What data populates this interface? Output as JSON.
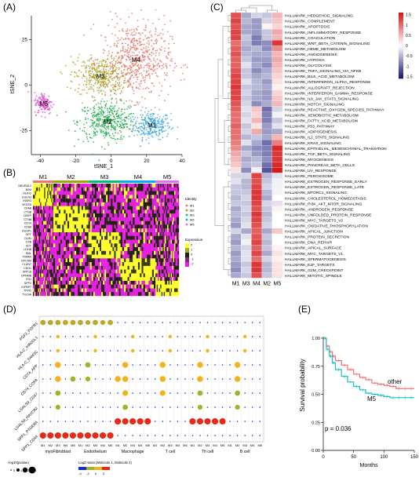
{
  "panels": {
    "a": {
      "label": "(A)",
      "xlabel": "tSNE_1",
      "ylabel": "tSNE_2",
      "xticks": [
        "-40",
        "-20",
        "0",
        "20",
        "40"
      ],
      "yticks": [
        "25",
        "0",
        "-25"
      ],
      "clusters": [
        {
          "name": "M1",
          "color": "#3fa9e0"
        },
        {
          "name": "M2",
          "color": "#1fae4b"
        },
        {
          "name": "M3",
          "color": "#a8a628"
        },
        {
          "name": "M4",
          "color": "#e7766a"
        },
        {
          "name": "M5",
          "color": "#e04fd6"
        }
      ]
    },
    "b": {
      "label": "(B)",
      "groups": [
        "M1",
        "M2",
        "M3",
        "M4",
        "M5"
      ],
      "group_colors": [
        "#f0766b",
        "#a3a500",
        "#00bf7d",
        "#00b0f6",
        "#e76bf3"
      ],
      "genes": [
        "NEURAL2",
        "B2M",
        "HLA-D",
        "EGLN3",
        "INSR3",
        "VEGFA",
        "CFAB",
        "CTSB",
        "CBGP",
        "CTNB",
        "CD14",
        "CD68",
        "DUSP1",
        "GPT",
        "DUKI",
        "CXB",
        "SCT",
        "LDHB",
        "SML",
        "TSPAN",
        "EPCAM",
        "CLDN7",
        "CDH1",
        "KRT18",
        "GPNMB",
        "FN1",
        "SPP1",
        "IGFBP7",
        "TFPI2",
        "TXLNA"
      ],
      "legend_identity_title": "Identity",
      "legend_identity_items": [
        "M1",
        "M2",
        "M3",
        "M4",
        "M5"
      ],
      "legend_expression_title": "Expression",
      "legend_expression_ticks": [
        "2",
        "1",
        "0",
        "-1",
        "-2"
      ]
    },
    "c": {
      "label": "(C)",
      "columns": [
        "M1",
        "M3",
        "M4",
        "M2",
        "M5"
      ],
      "colorbar_ticks": [
        "1.5",
        "1",
        "0.5",
        "0",
        "-0.5",
        "-1",
        "-1.5"
      ],
      "rows": [
        "HALLMARK_HEDGEHOG_SIGNALING",
        "HALLMARK_COMPLEMENT",
        "HALLMARK_APOPTOSIS",
        "HALLMARK_INFLAMMATORY_RESPONSE",
        "HALLMARK_COAGULATION",
        "HALLMARK_WNT_BETA_CATENIN_SIGNALING",
        "HALLMARK_HEME_METABOLISM",
        "HALLMARK_ANGIOGENESIS",
        "HALLMARK_HYPOXIA",
        "HALLMARK_GLYCOLYSIS",
        "HALLMARK_TNFA_SIGNALING_VIA_NFKB",
        "HALLMARK_BILE_ACID_METABOLISM",
        "HALLMARK_INTERFERON_ALPHA_RESPONSE",
        "HALLMARK_ALLOGRAFT_REJECTION",
        "HALLMARK_INTERFERON_GAMMA_RESPONSE",
        "HALLMARK_IL6_JAK_STAT3_SIGNALING",
        "HALLMARK_NOTCH_SIGNALING",
        "HALLMARK_REACTIVE_OXYGEN_SPECIES_PATHWAY",
        "HALLMARK_XENOBIOTIC_METABOLISM",
        "HALLMARK_FATTY_ACID_METABOLISM",
        "HALLMARK_P53_PATHWAY",
        "HALLMARK_ADIPOGENESIS",
        "HALLMARK_IL2_STAT5_SIGNALING",
        "HALLMARK_KRAS_SIGNALING",
        "HALLMARK_EPITHELIAL_MESENCHYMAL_TRANSITION",
        "HALLMARK_TGF_BETA_SIGNALING",
        "HALLMARK_MYOGENESIS",
        "HALLMARK_PANCREAS_BETA_CELLS",
        "HALLMARK_UV_RESPONSE",
        "HALLMARK_PEROXISOME",
        "HALLMARK_ESTROGEN_RESPONSE_EARLY",
        "HALLMARK_ESTROGEN_RESPONSE_LATE",
        "HALLMARK_MTORC1_SIGNALING",
        "HALLMARK_CHOLESTEROL_HOMEOSTASIS",
        "HALLMARK_PI3K_AKT_MTOR_SIGNALING",
        "HALLMARK_ANDROGEN_RESPONSE",
        "HALLMARK_UNFOLDED_PROTEIN_RESPONSE",
        "HALLMARK_MYC_TARGETS_V2",
        "HALLMARK_OXIDATIVE_PHOSPHORYLATION",
        "HALLMARK_APICAL_JUNCTION",
        "HALLMARK_PROTEIN_SECRETION",
        "HALLMARK_DNA_REPAIR",
        "HALLMARK_APICAL_SURFACE",
        "HALLMARK_MYC_TARGETS_V1",
        "HALLMARK_SPERMATOGENESIS",
        "HALLMARK_E2F_TARGETS",
        "HALLMARK_G2M_CHECKPOINT",
        "HALLMARK_MITOTIC_SPINDLE"
      ]
    },
    "d": {
      "label": "(D)",
      "pairs": [
        "FGF2_FGFR1",
        "HLA-C_KIR2DL1",
        "HLA-C_FAM3C",
        "CD74_APP",
        "CD74_COPA",
        "LGALS9_CD47",
        "LGALS9_HAVCR2",
        "SPP1_PTGER4",
        "SPP1_CD44"
      ],
      "cell_types": [
        "myoFibroblast",
        "Endothelium",
        "Macrophage",
        "T cell",
        "Th cell",
        "B cell"
      ],
      "cluster_ticks": [
        "M1",
        "M2",
        "M3",
        "M4",
        "M5"
      ],
      "legend_size_title": "-log10(pvalue)",
      "legend_size_ticks": [
        "0",
        "1",
        "2",
        "3"
      ],
      "legend_color_title": "Log2 mean (Molecule 1, Molecule 2)",
      "legend_color_ticks": [
        "-4",
        "-2",
        "0",
        "2"
      ]
    },
    "e": {
      "label": "(E)",
      "ylabel": "Survival probability",
      "xlabel": "Months",
      "xticks": [
        "0",
        "50",
        "100",
        "150"
      ],
      "yticks": [
        "0.00",
        "0.25",
        "0.50",
        "0.75",
        "1.00"
      ],
      "pvalue_text": "p = 0.036",
      "label_other": "other",
      "label_m5": "M5"
    }
  },
  "chart_data": [
    {
      "type": "scatter",
      "xlim": [
        -45,
        40
      ],
      "ylim": [
        -38,
        38
      ],
      "series": [
        {
          "name": "M1",
          "center": [
            23,
            -22
          ],
          "spread": [
            7,
            5
          ],
          "n": 260
        },
        {
          "name": "M2",
          "center": [
            -2,
            -20
          ],
          "spread": [
            11,
            7
          ],
          "n": 420
        },
        {
          "name": "M3",
          "center": [
            -6,
            5
          ],
          "spread": [
            10,
            7
          ],
          "n": 380
        },
        {
          "name": "M4",
          "center": [
            14,
            14
          ],
          "spread": [
            13,
            14
          ],
          "n": 620
        },
        {
          "name": "M5",
          "center": [
            -38,
            -10
          ],
          "spread": [
            3.5,
            4
          ],
          "n": 140
        }
      ]
    },
    {
      "type": "heatmap",
      "columns": [
        "M1",
        "M3",
        "M4",
        "M2",
        "M5"
      ],
      "values": [
        [
          1.2,
          -0.6,
          -0.3,
          -0.4,
          0.5
        ],
        [
          1.3,
          -0.5,
          -0.7,
          -0.3,
          0.4
        ],
        [
          1.2,
          -0.6,
          -0.7,
          0.1,
          0.3
        ],
        [
          1.3,
          -0.6,
          -0.7,
          -0.4,
          0.6
        ],
        [
          1.3,
          -0.4,
          -0.9,
          -0.4,
          0.5
        ],
        [
          1.0,
          -0.5,
          -0.9,
          -0.8,
          1.4
        ],
        [
          1.1,
          -0.6,
          -0.5,
          -0.8,
          0.8
        ],
        [
          1.2,
          -0.5,
          -0.6,
          -0.6,
          0.5
        ],
        [
          1.1,
          -0.4,
          -0.7,
          -0.7,
          0.6
        ],
        [
          1.1,
          -0.2,
          -0.6,
          -0.8,
          0.5
        ],
        [
          1.2,
          -0.4,
          -0.8,
          -0.6,
          0.4
        ],
        [
          1.3,
          -0.4,
          -0.6,
          -0.5,
          0.3
        ],
        [
          1.3,
          -0.2,
          -0.5,
          -0.7,
          0.2
        ],
        [
          1.4,
          -0.4,
          -0.5,
          -0.6,
          0.1
        ],
        [
          1.3,
          -0.3,
          -0.6,
          -0.7,
          0.3
        ],
        [
          1.3,
          -0.4,
          -0.6,
          -0.7,
          0.4
        ],
        [
          1.2,
          -0.3,
          -0.8,
          -0.6,
          0.5
        ],
        [
          1.1,
          -0.2,
          0.4,
          -1.0,
          -0.3
        ],
        [
          1.0,
          -0.3,
          0.3,
          -0.9,
          -0.1
        ],
        [
          1.0,
          -0.2,
          0.5,
          -0.9,
          -0.4
        ],
        [
          1.1,
          -0.4,
          0.2,
          -0.7,
          -0.2
        ],
        [
          1.0,
          -0.3,
          0.6,
          -0.7,
          -0.6
        ],
        [
          1.0,
          -0.5,
          -0.4,
          -0.6,
          0.5
        ],
        [
          0.9,
          -0.2,
          -0.6,
          -1.0,
          0.9
        ],
        [
          0.8,
          -0.6,
          -0.8,
          -0.9,
          1.5
        ],
        [
          0.6,
          -0.4,
          -0.7,
          -0.9,
          1.4
        ],
        [
          0.5,
          -0.6,
          -0.5,
          -0.8,
          1.4
        ],
        [
          0.4,
          -0.5,
          -0.4,
          -1.0,
          1.5
        ],
        [
          0.2,
          -0.8,
          -0.1,
          -1.2,
          1.6
        ],
        [
          -0.3,
          -0.3,
          1.3,
          -0.5,
          -0.2
        ],
        [
          -0.2,
          -0.5,
          1.2,
          -0.4,
          -0.1
        ],
        [
          -0.4,
          -0.5,
          1.3,
          -0.3,
          -0.1
        ],
        [
          -0.4,
          -0.4,
          1.4,
          -0.5,
          -0.1
        ],
        [
          -0.5,
          -0.3,
          1.4,
          -0.6,
          0.0
        ],
        [
          -0.4,
          -0.4,
          1.3,
          -0.3,
          -0.2
        ],
        [
          -0.6,
          -0.3,
          1.2,
          -0.4,
          0.1
        ],
        [
          -0.5,
          -0.4,
          1.4,
          -0.5,
          0.0
        ],
        [
          -0.6,
          -0.3,
          1.3,
          -0.4,
          0.0
        ],
        [
          -0.7,
          -0.2,
          1.2,
          -0.3,
          0.0
        ],
        [
          -0.3,
          -0.6,
          1.1,
          -0.6,
          0.4
        ],
        [
          -0.6,
          -0.2,
          1.2,
          -0.4,
          0.0
        ],
        [
          -0.7,
          -0.1,
          1.3,
          -0.5,
          0.0
        ],
        [
          -0.5,
          -0.3,
          1.1,
          -0.4,
          0.1
        ],
        [
          -0.7,
          -0.2,
          1.3,
          -0.6,
          0.2
        ],
        [
          -0.6,
          -0.2,
          1.0,
          -0.3,
          0.1
        ],
        [
          -0.7,
          -0.4,
          1.4,
          -0.5,
          0.2
        ],
        [
          -0.8,
          -0.3,
          1.4,
          -0.5,
          0.2
        ],
        [
          -0.6,
          -0.4,
          1.2,
          -0.4,
          0.2
        ]
      ]
    },
    {
      "type": "scatter",
      "note_type": "dotplot",
      "points": [
        {
          "row": 0,
          "cols": [
            [
              0,
              1.2,
              1.0
            ],
            [
              1,
              1.2,
              1.0
            ],
            [
              2,
              1.2,
              1.0
            ],
            [
              3,
              1.2,
              1.0
            ],
            [
              4,
              1.2,
              1.0
            ],
            [
              5,
              1.2,
              1.0
            ],
            [
              6,
              1.0,
              0.9
            ],
            [
              7,
              1.2,
              1.0
            ],
            [
              8,
              1.0,
              0.9
            ],
            [
              9,
              1.2,
              1.0
            ]
          ]
        },
        {
          "row": 3,
          "cols": [
            [
              2,
              1.4,
              1.1
            ],
            [
              6,
              1.2,
              1.0
            ],
            [
              11,
              1.4,
              1.1
            ],
            [
              16,
              1.4,
              1.1
            ],
            [
              21,
              1.4,
              1.1
            ],
            [
              26,
              1.4,
              1.1
            ]
          ]
        },
        {
          "row": 4,
          "cols": [
            [
              2,
              1.4,
              1.1
            ],
            [
              4,
              1.2,
              1.0
            ],
            [
              6,
              1.0,
              0.9
            ],
            [
              10,
              1.4,
              1.1
            ],
            [
              11,
              1.4,
              1.1
            ],
            [
              16,
              1.4,
              1.1
            ],
            [
              21,
              1.4,
              1.1
            ],
            [
              26,
              1.4,
              1.1
            ]
          ]
        },
        {
          "row": 5,
          "cols": [
            [
              2,
              1.2,
              1.0
            ],
            [
              11,
              1.3,
              1.1
            ],
            [
              16,
              1.3,
              1.1
            ],
            [
              21,
              1.2,
              1.0
            ],
            [
              26,
              1.2,
              1.0
            ]
          ]
        },
        {
          "row": 6,
          "cols": [
            [
              2,
              1.0,
              0.9
            ],
            [
              11,
              1.2,
              1.0
            ],
            [
              21,
              1.0,
              0.9
            ],
            [
              26,
              1.0,
              0.9
            ]
          ]
        },
        {
          "row": 7,
          "cols": [
            [
              10,
              1.6,
              1.5
            ],
            [
              11,
              1.6,
              1.5
            ],
            [
              12,
              1.6,
              1.5
            ],
            [
              13,
              1.6,
              1.5
            ],
            [
              14,
              1.6,
              1.5
            ],
            [
              20,
              1.6,
              1.5
            ],
            [
              21,
              1.6,
              1.5
            ],
            [
              22,
              1.6,
              1.5
            ],
            [
              23,
              1.6,
              1.5
            ],
            [
              24,
              1.6,
              1.5
            ]
          ]
        },
        {
          "row": 8,
          "cols": [
            [
              0,
              1.6,
              1.8
            ],
            [
              1,
              1.6,
              1.8
            ],
            [
              2,
              1.6,
              1.8
            ],
            [
              3,
              1.6,
              1.8
            ],
            [
              4,
              1.6,
              1.8
            ],
            [
              5,
              1.6,
              1.8
            ],
            [
              6,
              1.6,
              1.8
            ],
            [
              7,
              1.6,
              1.8
            ],
            [
              8,
              1.6,
              1.8
            ],
            [
              9,
              1.6,
              1.8
            ]
          ]
        }
      ]
    },
    {
      "type": "line",
      "xlim": [
        0,
        150
      ],
      "ylim": [
        0,
        1
      ],
      "series": [
        {
          "name": "other",
          "x": [
            0,
            5,
            10,
            15,
            20,
            30,
            40,
            50,
            60,
            70,
            80,
            90,
            100,
            110,
            120,
            130,
            140,
            150
          ],
          "y": [
            1.0,
            0.93,
            0.88,
            0.84,
            0.8,
            0.76,
            0.72,
            0.68,
            0.65,
            0.63,
            0.6,
            0.59,
            0.58,
            0.57,
            0.55,
            0.55,
            0.55,
            0.55
          ]
        },
        {
          "name": "M5",
          "x": [
            0,
            5,
            10,
            15,
            20,
            30,
            40,
            50,
            60,
            70,
            80,
            90,
            100,
            110,
            120,
            130,
            140,
            150
          ],
          "y": [
            1.0,
            0.9,
            0.84,
            0.78,
            0.72,
            0.66,
            0.61,
            0.57,
            0.54,
            0.51,
            0.5,
            0.49,
            0.48,
            0.47,
            0.47,
            0.47,
            0.47,
            0.47
          ]
        }
      ]
    }
  ]
}
